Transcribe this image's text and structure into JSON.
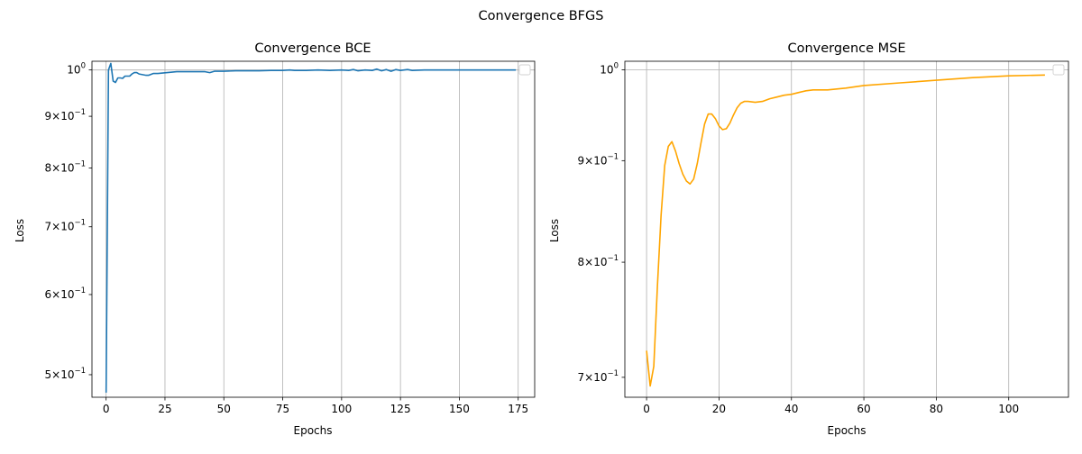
{
  "figure": {
    "title": "Convergence BFGS"
  },
  "chart_data": [
    {
      "type": "line",
      "title": "Convergence BCE",
      "xlabel": "Epochs",
      "ylabel": "Loss",
      "yscale": "log",
      "xlim": [
        -6,
        182
      ],
      "ylim": [
        0.475,
        1.02
      ],
      "xticks": [
        0,
        25,
        50,
        75,
        100,
        125,
        150,
        175
      ],
      "yticks": [
        {
          "value": 1.0,
          "label": "10",
          "sup": "0"
        },
        {
          "value": 0.9,
          "label": "9×10",
          "sup": "−1"
        },
        {
          "value": 0.8,
          "label": "8×10",
          "sup": "−1"
        },
        {
          "value": 0.7,
          "label": "7×10",
          "sup": "−1"
        },
        {
          "value": 0.6,
          "label": "6×10",
          "sup": "−1"
        },
        {
          "value": 0.5,
          "label": "5×10",
          "sup": "−1"
        }
      ],
      "grid": "vertical and horizontal at 10^0",
      "legend": "top-right (empty)",
      "series": [
        {
          "color": "#1f77b4",
          "x": [
            0,
            1,
            2,
            3,
            4,
            5,
            6,
            7,
            8,
            9,
            10,
            11,
            12,
            13,
            14,
            15,
            16,
            17,
            18,
            19,
            20,
            22,
            24,
            26,
            28,
            30,
            32,
            34,
            36,
            38,
            40,
            42,
            44,
            46,
            50,
            55,
            60,
            65,
            70,
            75,
            78,
            80,
            85,
            90,
            95,
            100,
            103,
            105,
            107,
            110,
            113,
            115,
            117,
            119,
            121,
            123,
            125,
            128,
            130,
            135,
            140,
            150,
            160,
            174
          ],
          "y": [
            0.48,
            1.0,
            1.015,
            0.975,
            0.972,
            0.982,
            0.982,
            0.981,
            0.986,
            0.986,
            0.986,
            0.991,
            0.994,
            0.994,
            0.991,
            0.99,
            0.989,
            0.988,
            0.988,
            0.99,
            0.992,
            0.992,
            0.993,
            0.994,
            0.995,
            0.996,
            0.996,
            0.996,
            0.996,
            0.996,
            0.996,
            0.996,
            0.994,
            0.997,
            0.997,
            0.998,
            0.998,
            0.998,
            0.999,
            0.999,
            1.0,
            0.999,
            0.999,
            1.0,
            0.999,
            1.0,
            0.999,
            1.001,
            0.998,
            1.0,
            0.999,
            1.002,
            0.998,
            1.001,
            0.997,
            1.001,
            0.999,
            1.001,
            0.999,
            1.0,
            1.0,
            1.0,
            1.0,
            1.0
          ]
        }
      ]
    },
    {
      "type": "line",
      "title": "Convergence MSE",
      "xlabel": "Epochs",
      "ylabel": "Loss",
      "yscale": "log",
      "xlim": [
        -6,
        116.5
      ],
      "ylim": [
        0.684,
        1.01
      ],
      "xticks": [
        0,
        20,
        40,
        60,
        80,
        100
      ],
      "yticks": [
        {
          "value": 1.0,
          "label": "10",
          "sup": "0"
        },
        {
          "value": 0.9,
          "label": "9×10",
          "sup": "−1"
        },
        {
          "value": 0.8,
          "label": "8×10",
          "sup": "−1"
        },
        {
          "value": 0.7,
          "label": "7×10",
          "sup": "−1"
        }
      ],
      "grid": "vertical and horizontal at 10^0",
      "legend": "top-right (empty)",
      "series": [
        {
          "color": "#ffa500",
          "x": [
            0,
            1,
            2,
            3,
            4,
            5,
            6,
            7,
            8,
            9,
            10,
            11,
            12,
            13,
            14,
            15,
            16,
            17,
            18,
            19,
            20,
            21,
            22,
            23,
            24,
            25,
            26,
            27,
            28,
            30,
            32,
            34,
            36,
            38,
            40,
            42,
            44,
            46,
            50,
            55,
            60,
            70,
            80,
            90,
            100,
            110
          ],
          "y": [
            0.722,
            0.693,
            0.709,
            0.778,
            0.845,
            0.895,
            0.915,
            0.92,
            0.91,
            0.897,
            0.886,
            0.879,
            0.876,
            0.881,
            0.897,
            0.918,
            0.939,
            0.95,
            0.95,
            0.945,
            0.937,
            0.933,
            0.934,
            0.94,
            0.949,
            0.957,
            0.962,
            0.964,
            0.964,
            0.963,
            0.964,
            0.967,
            0.969,
            0.971,
            0.972,
            0.974,
            0.976,
            0.977,
            0.977,
            0.979,
            0.982,
            0.985,
            0.988,
            0.991,
            0.993,
            0.994
          ]
        }
      ]
    }
  ]
}
